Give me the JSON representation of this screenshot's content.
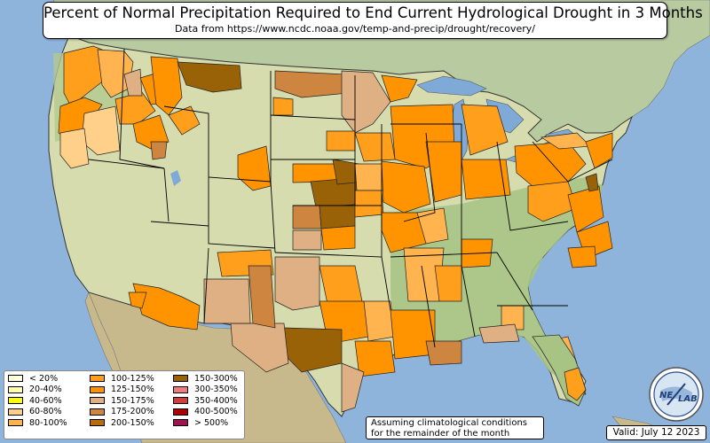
{
  "title": "Percent of Normal Precipitation Required to End Current Hydrological Drought in 3 Months",
  "subtitle": "Data from https://www.ncdc.noaa.gov/temp-and-precip/drought/recovery/",
  "note_line1": "Assuming climatological conditions",
  "note_line2": "for the remainder of the month",
  "valid": "Valid: July 12 2023",
  "logo": {
    "text_left": "NE",
    "text_right": "LAB"
  },
  "legend": [
    {
      "label": "< 20%",
      "color": "#ffffe0"
    },
    {
      "label": "20-40%",
      "color": "#ffffb0"
    },
    {
      "label": "40-60%",
      "color": "#ffff00"
    },
    {
      "label": "60-80%",
      "color": "#ffd08a"
    },
    {
      "label": "80-100%",
      "color": "#ffb450"
    },
    {
      "label": "100-125%",
      "color": "#ff9f1c"
    },
    {
      "label": "125-150%",
      "color": "#ff9400"
    },
    {
      "label": "150-175%",
      "color": "#deb083"
    },
    {
      "label": "175-200%",
      "color": "#cd853f"
    },
    {
      "label": "200-150%",
      "color": "#b86b0d"
    },
    {
      "label": "150-300%",
      "color": "#9a6206"
    },
    {
      "label": "300-350%",
      "color": "#ef7b7b"
    },
    {
      "label": "350-400%",
      "color": "#d23c3c"
    },
    {
      "label": "400-500%",
      "color": "#aa0000"
    },
    {
      "label": "> 500%",
      "color": "#a0124f"
    }
  ],
  "colors": {
    "ocean": "#8fb4dc",
    "land_base": "#d6dcae",
    "land_green": "#a9c78a",
    "land_east": "#9fbf7e",
    "mexico": "#c8b98c",
    "canada": "#b8cba0",
    "water": "#7fa9d6"
  }
}
